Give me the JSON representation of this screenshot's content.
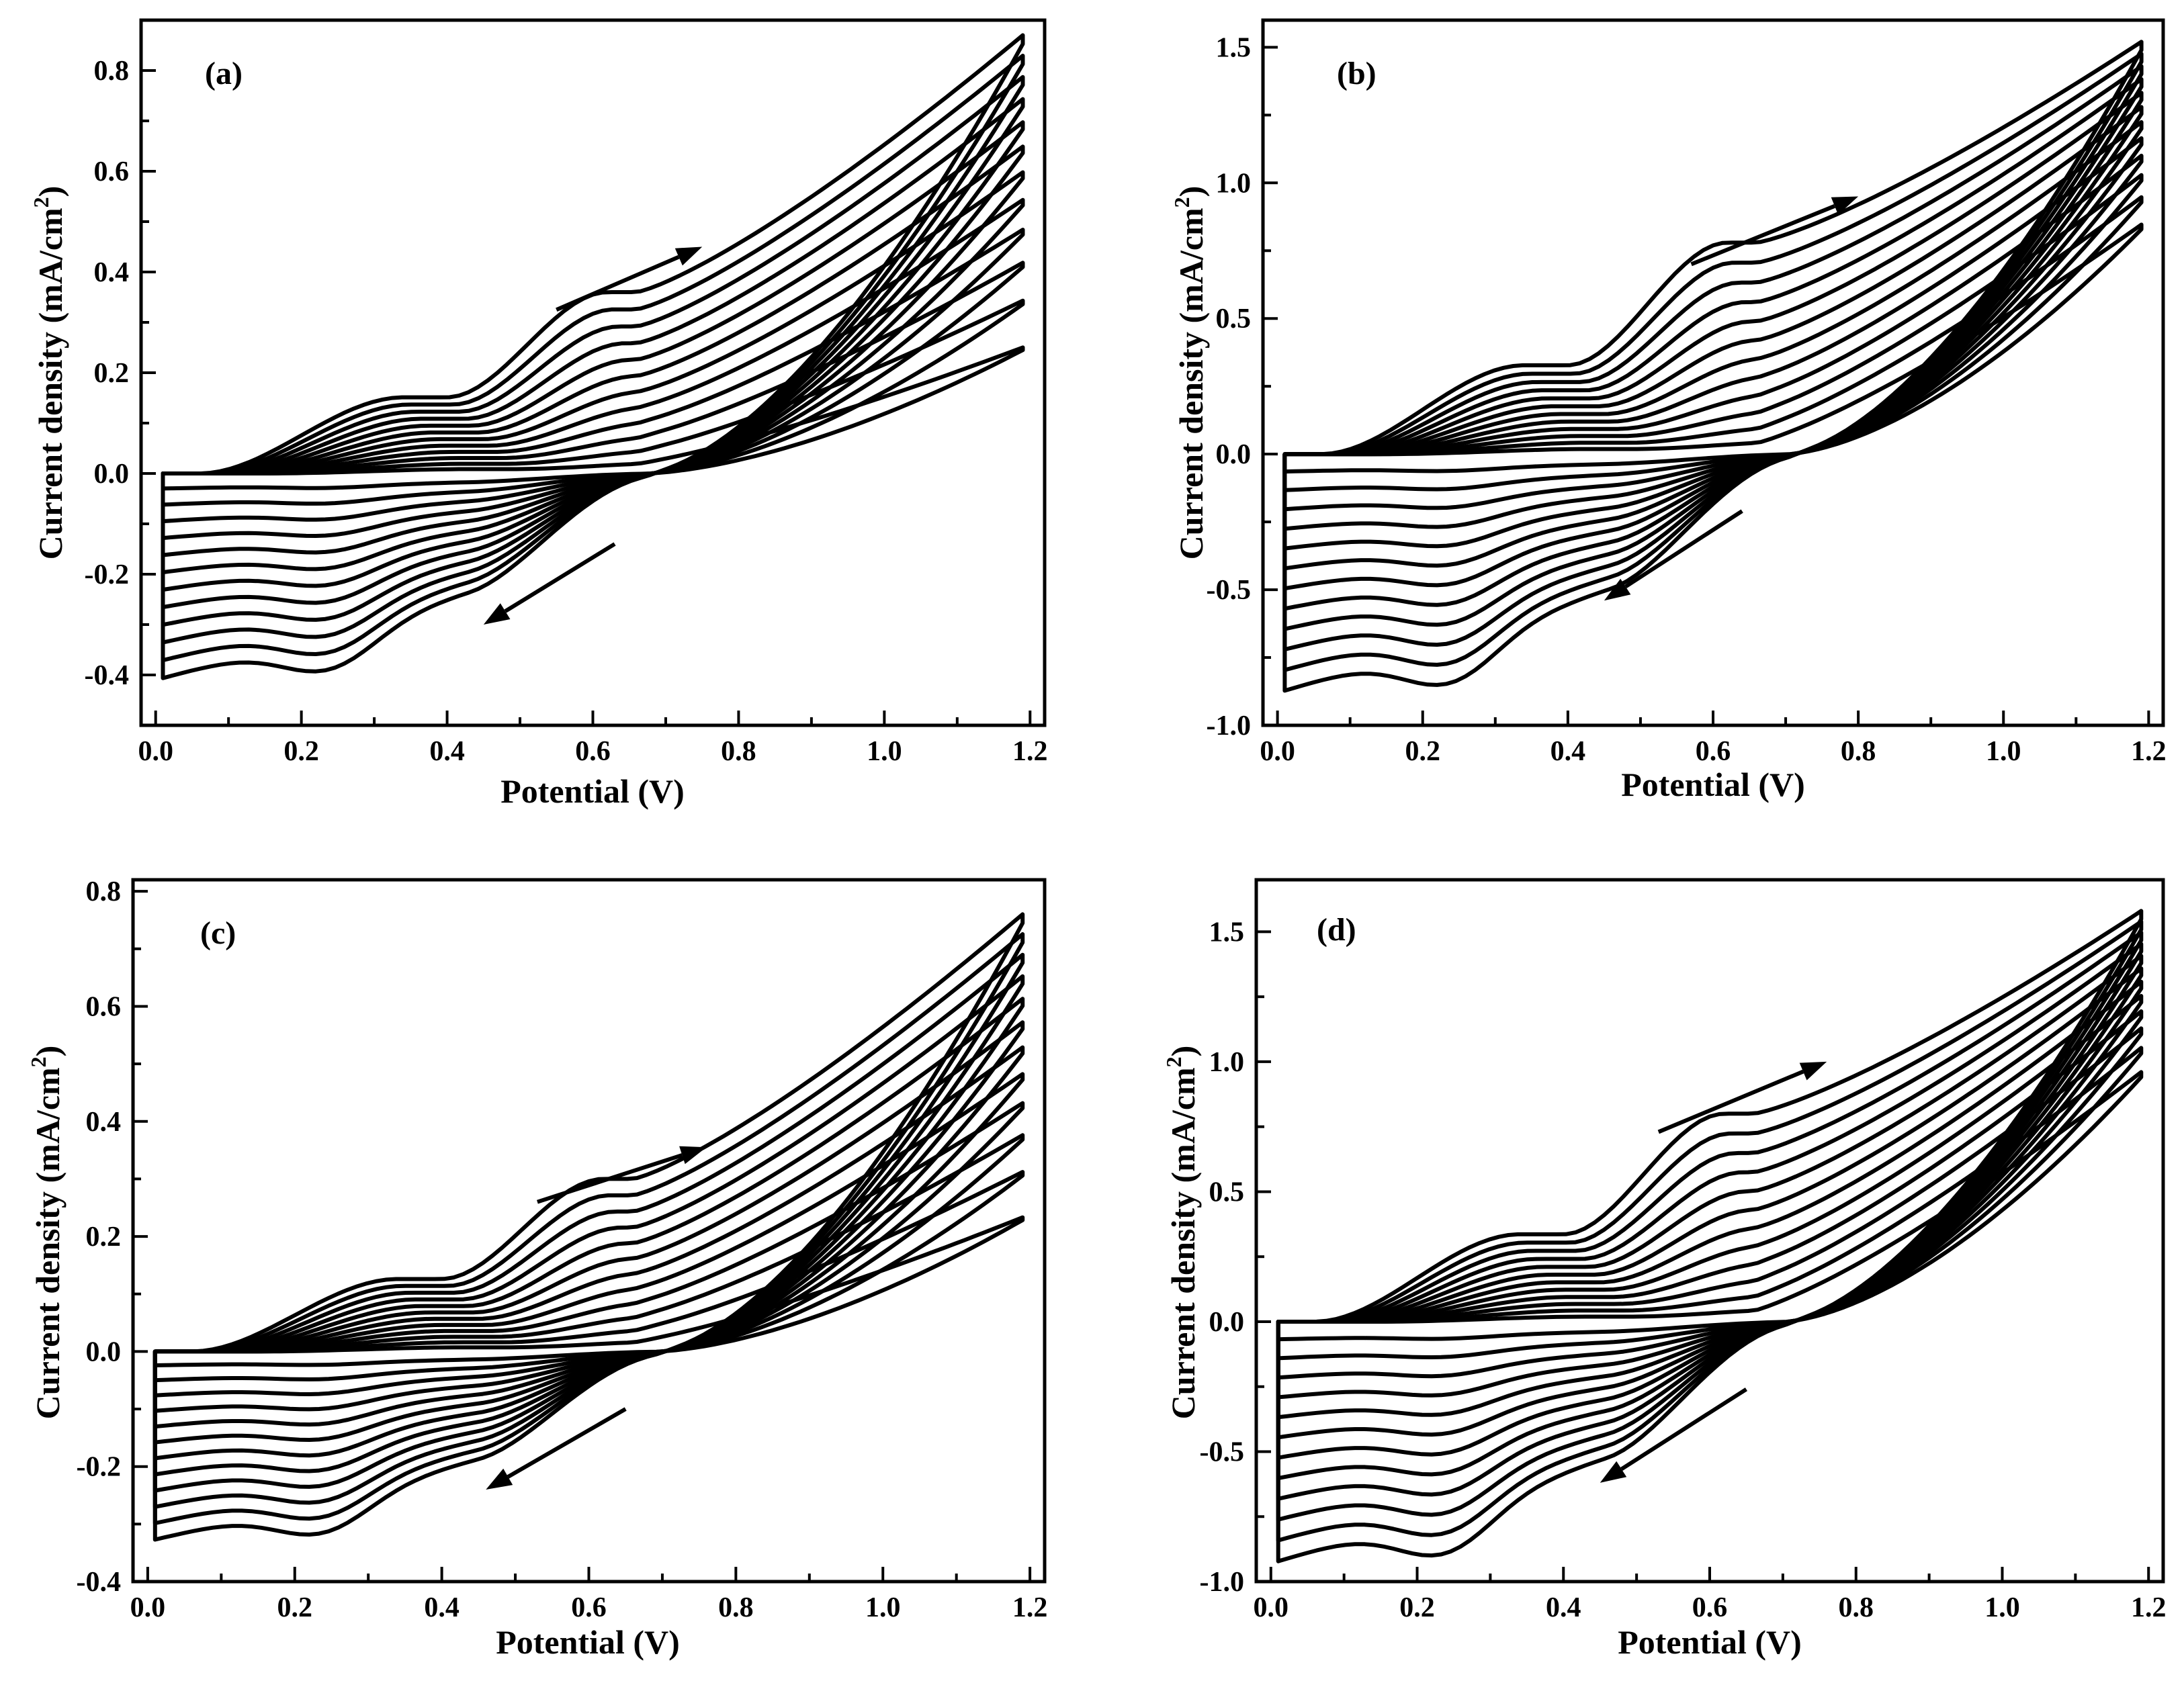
{
  "chart_data": [
    {
      "type": "line",
      "panel": "(a)",
      "xlabel": "Potential (V)",
      "ylabel": "Current density (mA/cm",
      "ylabel_sup": "2",
      "ylabel_close": ")",
      "xlim": [
        -0.02,
        1.22
      ],
      "ylim": [
        -0.5,
        0.9
      ],
      "xticks": [
        0.0,
        0.2,
        0.4,
        0.6,
        0.8,
        1.0,
        1.2
      ],
      "xtick_labels": [
        "0.0",
        "0.2",
        "0.4",
        "0.6",
        "0.8",
        "1.0",
        "1.2"
      ],
      "yticks": [
        -0.4,
        -0.2,
        0.0,
        0.2,
        0.4,
        0.6,
        0.8
      ],
      "ytick_labels": [
        "-0.4",
        "-0.2",
        "0.0",
        "0.2",
        "0.4",
        "0.6",
        "0.8"
      ],
      "cv_params": {
        "n": 12,
        "ip_max": 0.36,
        "ic_max": 0.41,
        "i_end_min": 0.07,
        "i_end_max": 0.87,
        "x_cross": 0.67,
        "x_onset": 0.11
      },
      "arrows": [
        {
          "direction": "anodic",
          "from": [
            0.55,
            0.325
          ],
          "to": [
            0.75,
            0.45
          ]
        },
        {
          "direction": "cathodic",
          "from": [
            0.63,
            -0.14
          ],
          "to": [
            0.45,
            -0.3
          ]
        }
      ]
    },
    {
      "type": "line",
      "panel": "(b)",
      "xlabel": "Potential (V)",
      "ylabel": "Current density (mA/cm",
      "ylabel_sup": "2",
      "ylabel_close": ")",
      "xlim": [
        -0.02,
        1.22
      ],
      "ylim": [
        -1.0,
        1.6
      ],
      "xticks": [
        0.0,
        0.2,
        0.4,
        0.6,
        0.8,
        1.0,
        1.2
      ],
      "xtick_labels": [
        "0.0",
        "0.2",
        "0.4",
        "0.6",
        "0.8",
        "1.0",
        "1.2"
      ],
      "yticks": [
        -1.0,
        -0.5,
        0.0,
        0.5,
        1.0,
        1.5
      ],
      "ytick_labels": [
        "-1.0",
        "-0.5",
        "0.0",
        "0.5",
        "1.0",
        "1.5"
      ],
      "cv_params": {
        "n": 12,
        "ip_max": 0.78,
        "ic_max": 0.88,
        "i_end_min": 0.65,
        "i_end_max": 1.52,
        "x_cross": 0.7,
        "x_onset": 0.15
      },
      "arrows": [
        {
          "direction": "anodic",
          "from": [
            0.57,
            0.7
          ],
          "to": [
            0.8,
            0.95
          ]
        },
        {
          "direction": "cathodic",
          "from": [
            0.64,
            -0.21
          ],
          "to": [
            0.45,
            -0.54
          ]
        }
      ]
    },
    {
      "type": "line",
      "panel": "(c)",
      "xlabel": "Potential (V)",
      "ylabel": "Current density (mA/cm",
      "ylabel_sup": "2",
      "ylabel_close": ")",
      "xlim": [
        -0.02,
        1.22
      ],
      "ylim": [
        -0.4,
        0.82
      ],
      "xticks": [
        0.0,
        0.2,
        0.4,
        0.6,
        0.8,
        1.0,
        1.2
      ],
      "xtick_labels": [
        "0.0",
        "0.2",
        "0.4",
        "0.6",
        "0.8",
        "1.0",
        "1.2"
      ],
      "yticks": [
        -0.4,
        -0.2,
        0.0,
        0.2,
        0.4,
        0.6,
        0.8
      ],
      "ytick_labels": [
        "-0.4",
        "-0.2",
        "0.0",
        "0.2",
        "0.4",
        "0.6",
        "0.8"
      ],
      "cv_params": {
        "n": 12,
        "ip_max": 0.3,
        "ic_max": 0.33,
        "i_end_min": 0.08,
        "i_end_max": 0.76,
        "x_cross": 0.69,
        "x_onset": 0.1
      },
      "arrows": [
        {
          "direction": "anodic",
          "from": [
            0.53,
            0.26
          ],
          "to": [
            0.76,
            0.355
          ]
        },
        {
          "direction": "cathodic",
          "from": [
            0.65,
            -0.1
          ],
          "to": [
            0.46,
            -0.24
          ]
        }
      ]
    },
    {
      "type": "line",
      "panel": "(d)",
      "xlabel": "Potential (V)",
      "ylabel": "Current density (mA/cm",
      "ylabel_sup": "2",
      "ylabel_close": ")",
      "xlim": [
        -0.02,
        1.22
      ],
      "ylim": [
        -1.0,
        1.7
      ],
      "xticks": [
        0.0,
        0.2,
        0.4,
        0.6,
        0.8,
        1.0,
        1.2
      ],
      "xtick_labels": [
        "0.0",
        "0.2",
        "0.4",
        "0.6",
        "0.8",
        "1.0",
        "1.2"
      ],
      "yticks": [
        -1.0,
        -0.5,
        0.0,
        0.5,
        1.0,
        1.5
      ],
      "ytick_labels": [
        "-1.0",
        "-0.5",
        "0.0",
        "0.5",
        "1.0",
        "1.5"
      ],
      "cv_params": {
        "n": 12,
        "ip_max": 0.8,
        "ic_max": 0.93,
        "i_end_min": 0.78,
        "i_end_max": 1.58,
        "x_cross": 0.7,
        "x_onset": 0.16
      },
      "arrows": [
        {
          "direction": "anodic",
          "from": [
            0.53,
            0.73
          ],
          "to": [
            0.76,
            1.0
          ]
        },
        {
          "direction": "cathodic",
          "from": [
            0.65,
            -0.26
          ],
          "to": [
            0.45,
            -0.62
          ]
        }
      ]
    }
  ]
}
